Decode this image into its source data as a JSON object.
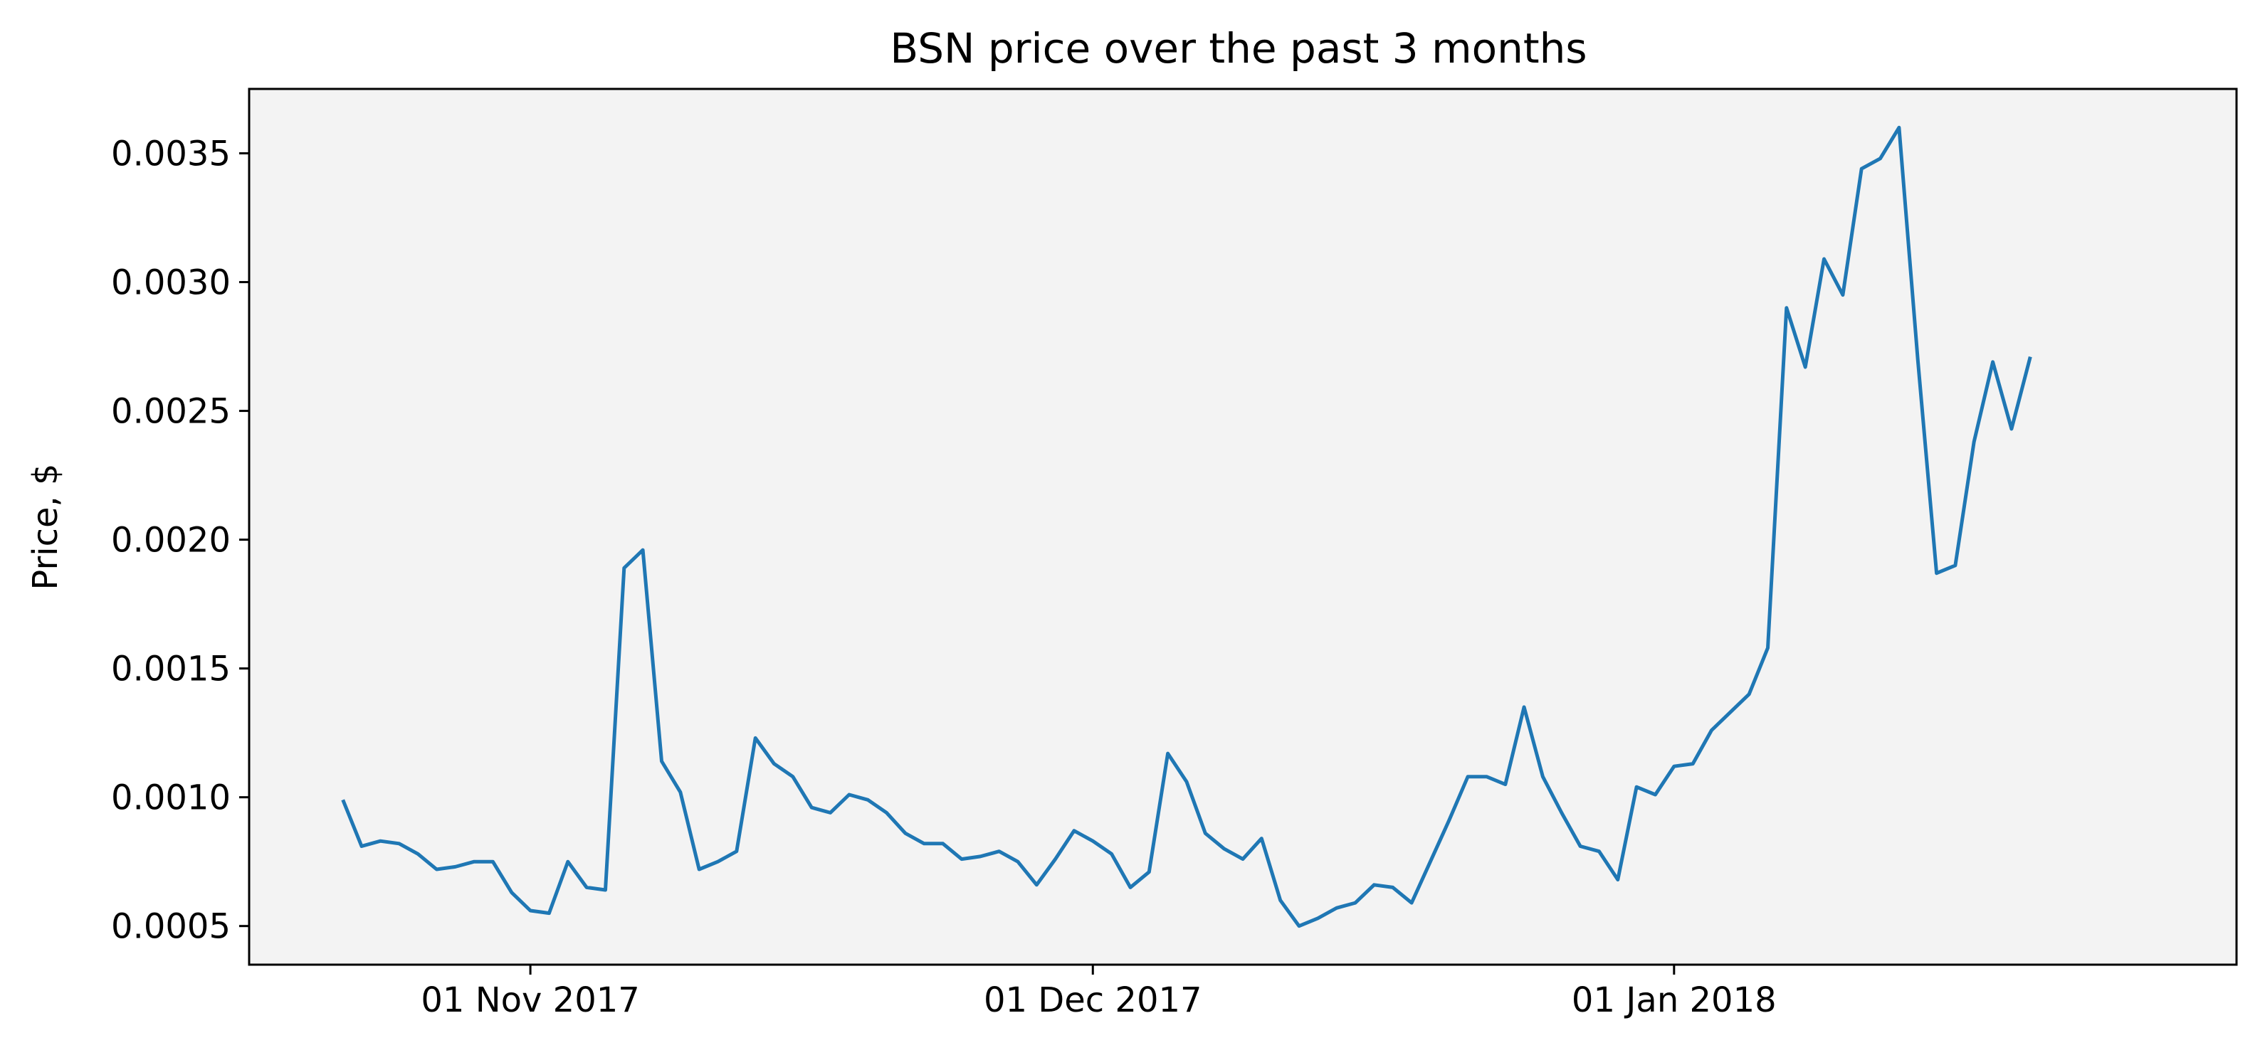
{
  "chart_data": {
    "type": "line",
    "title": "BSN price over the past 3 months",
    "xlabel": "",
    "ylabel": "Price, $",
    "x_start_date": "2017-10-22",
    "x_step_days": 1,
    "xlim": [
      "2017-10-17",
      "2018-01-31"
    ],
    "ylim": [
      0.00035,
      0.00375
    ],
    "xticks": [
      {
        "date": "2017-11-01",
        "label": "01 Nov 2017"
      },
      {
        "date": "2017-12-01",
        "label": "01 Dec 2017"
      },
      {
        "date": "2018-01-01",
        "label": "01 Jan 2018"
      }
    ],
    "yticks": [
      {
        "value": 0.0005,
        "label": "0.0005"
      },
      {
        "value": 0.001,
        "label": "0.0010"
      },
      {
        "value": 0.0015,
        "label": "0.0015"
      },
      {
        "value": 0.002,
        "label": "0.0020"
      },
      {
        "value": 0.0025,
        "label": "0.0025"
      },
      {
        "value": 0.003,
        "label": "0.0030"
      },
      {
        "value": 0.0035,
        "label": "0.0035"
      }
    ],
    "grid": false,
    "series": [
      {
        "values": [
          0.00099,
          0.00081,
          0.00083,
          0.00082,
          0.00078,
          0.00072,
          0.00073,
          0.00075,
          0.00075,
          0.00063,
          0.00056,
          0.00055,
          0.00075,
          0.00065,
          0.00064,
          0.00189,
          0.00196,
          0.00114,
          0.00102,
          0.00072,
          0.00075,
          0.00079,
          0.00123,
          0.00113,
          0.00108,
          0.00096,
          0.00094,
          0.00101,
          0.00099,
          0.00094,
          0.00086,
          0.00082,
          0.00082,
          0.00076,
          0.00077,
          0.00079,
          0.00075,
          0.00066,
          0.00076,
          0.00087,
          0.00083,
          0.00078,
          0.00065,
          0.00071,
          0.00117,
          0.00106,
          0.00086,
          0.0008,
          0.00076,
          0.00084,
          0.0006,
          0.0005,
          0.00053,
          0.00057,
          0.00059,
          0.00066,
          0.00065,
          0.00059,
          0.00075,
          0.00091,
          0.00108,
          0.00108,
          0.00105,
          0.00135,
          0.00108,
          0.00094,
          0.00081,
          0.00079,
          0.00068,
          0.00104,
          0.00101,
          0.00112,
          0.00113,
          0.00126,
          0.00133,
          0.0014,
          0.00158,
          0.0029,
          0.00267,
          0.00309,
          0.00295,
          0.00344,
          0.00348,
          0.0036,
          0.0027,
          0.00187,
          0.0019,
          0.00238,
          0.00269,
          0.00243,
          0.00271
        ]
      }
    ],
    "line_color": "#1f77b4",
    "plot_background": "#f3f3f3"
  }
}
